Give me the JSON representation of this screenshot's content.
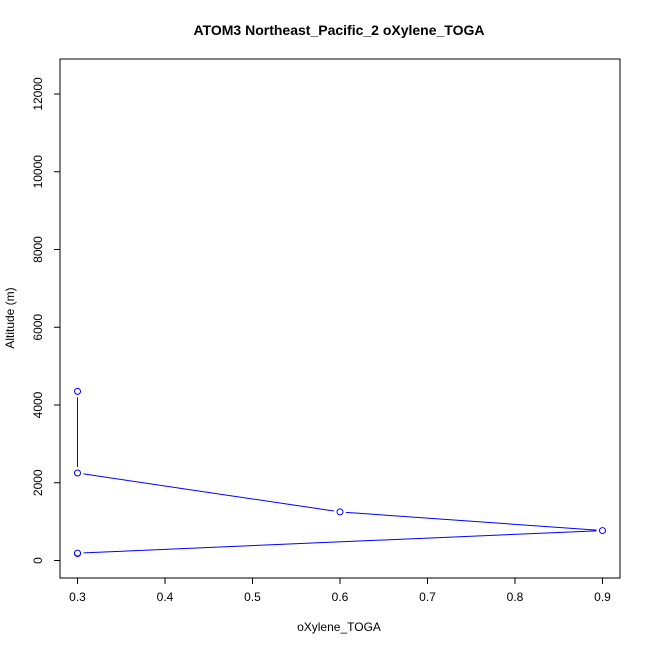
{
  "chart_data": {
    "type": "line",
    "title": "ATOM3 Northeast_Pacific_2 oXylene_TOGA",
    "xlabel": "oXylene_TOGA",
    "ylabel": "Altitude (m)",
    "xlim": [
      0.28,
      0.92
    ],
    "ylim": [
      -450,
      12900
    ],
    "x_ticks": [
      0.3,
      0.4,
      0.5,
      0.6,
      0.7,
      0.8,
      0.9
    ],
    "x_tick_labels": [
      "0.3",
      "0.4",
      "0.5",
      "0.6",
      "0.7",
      "0.8",
      "0.9"
    ],
    "y_ticks": [
      0,
      2000,
      4000,
      6000,
      8000,
      10000,
      12000
    ],
    "y_tick_labels": [
      "0",
      "2000",
      "4000",
      "6000",
      "8000",
      "10000",
      "12000"
    ],
    "grid": false,
    "series": [
      {
        "color": "#0000ff",
        "points": [
          {
            "x": 0.3,
            "y": 180
          },
          {
            "x": 0.3,
            "y": 190
          },
          {
            "x": 0.9,
            "y": 770
          },
          {
            "x": 0.6,
            "y": 1250
          },
          {
            "x": 0.3,
            "y": 2250
          },
          {
            "x": 0.3,
            "y": 4350
          }
        ]
      }
    ]
  }
}
